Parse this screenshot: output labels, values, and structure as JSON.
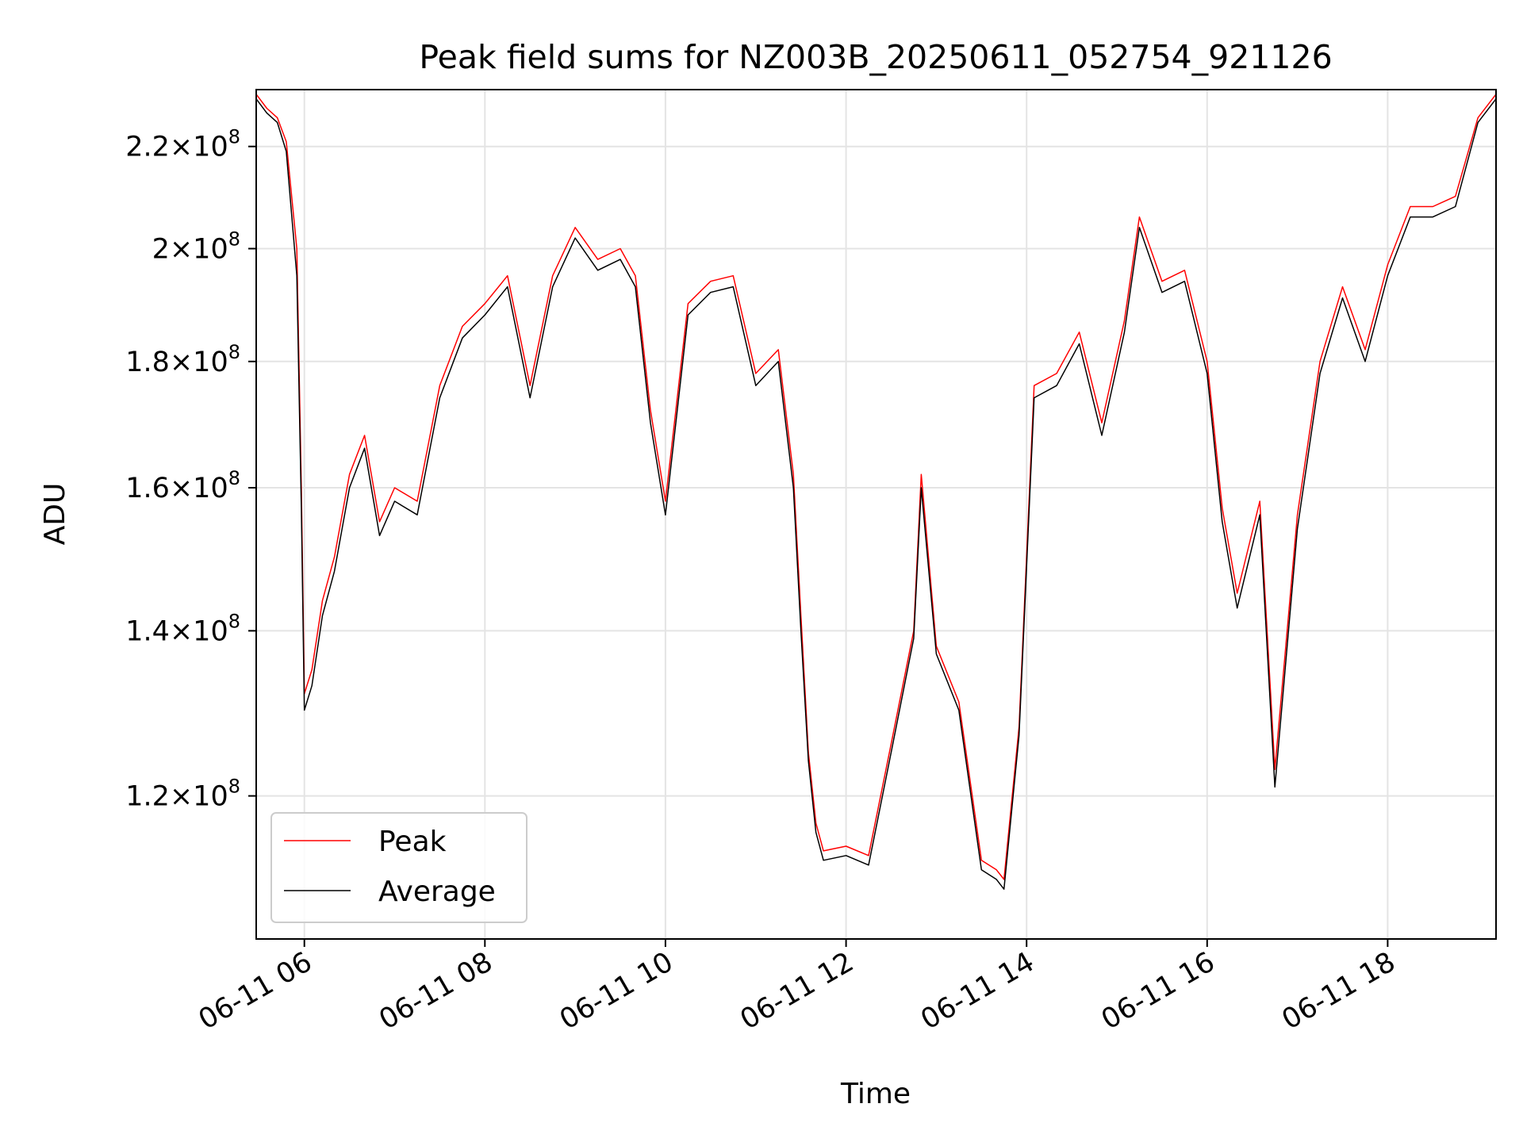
{
  "chart_data": {
    "type": "line",
    "title": "Peak field sums for NZ003B_20250611_052754_921126",
    "xlabel": "Time",
    "ylabel": "ADU",
    "yscale": "log",
    "ylim": [
      105000000,
      232000000
    ],
    "xlim": [
      "2025-06-11 05:28",
      "2025-06-11 19:12"
    ],
    "grid": true,
    "legend_position": "lower-left",
    "x_ticks": [
      {
        "t": "2025-06-11 06:00",
        "label": "06-11 06"
      },
      {
        "t": "2025-06-11 08:00",
        "label": "06-11 08"
      },
      {
        "t": "2025-06-11 10:00",
        "label": "06-11 10"
      },
      {
        "t": "2025-06-11 12:00",
        "label": "06-11 12"
      },
      {
        "t": "2025-06-11 14:00",
        "label": "06-11 14"
      },
      {
        "t": "2025-06-11 16:00",
        "label": "06-11 16"
      },
      {
        "t": "2025-06-11 18:00",
        "label": "06-11 18"
      }
    ],
    "y_ticks": [
      {
        "value": 120000000,
        "mantissa": "1.2",
        "base": "10",
        "exp": "8"
      },
      {
        "value": 140000000,
        "mantissa": "1.4",
        "base": "10",
        "exp": "8"
      },
      {
        "value": 160000000,
        "mantissa": "1.6",
        "base": "10",
        "exp": "8"
      },
      {
        "value": 180000000,
        "mantissa": "1.8",
        "base": "10",
        "exp": "8"
      },
      {
        "value": 200000000,
        "mantissa": "2",
        "base": "10",
        "exp": "8"
      },
      {
        "value": 220000000,
        "mantissa": "2.2",
        "base": "10",
        "exp": "8"
      }
    ],
    "series": [
      {
        "name": "Peak",
        "color": "#ff0000",
        "x": [
          "2025-06-11 05:28",
          "2025-06-11 05:35",
          "2025-06-11 05:42",
          "2025-06-11 05:48",
          "2025-06-11 05:55",
          "2025-06-11 05:58",
          "2025-06-11 06:00",
          "2025-06-11 06:05",
          "2025-06-11 06:12",
          "2025-06-11 06:20",
          "2025-06-11 06:30",
          "2025-06-11 06:40",
          "2025-06-11 06:50",
          "2025-06-11 07:00",
          "2025-06-11 07:15",
          "2025-06-11 07:30",
          "2025-06-11 07:45",
          "2025-06-11 08:00",
          "2025-06-11 08:15",
          "2025-06-11 08:30",
          "2025-06-11 08:45",
          "2025-06-11 09:00",
          "2025-06-11 09:15",
          "2025-06-11 09:30",
          "2025-06-11 09:40",
          "2025-06-11 09:50",
          "2025-06-11 10:00",
          "2025-06-11 10:15",
          "2025-06-11 10:30",
          "2025-06-11 10:45",
          "2025-06-11 11:00",
          "2025-06-11 11:15",
          "2025-06-11 11:25",
          "2025-06-11 11:30",
          "2025-06-11 11:35",
          "2025-06-11 11:40",
          "2025-06-11 11:45",
          "2025-06-11 12:00",
          "2025-06-11 12:15",
          "2025-06-11 12:30",
          "2025-06-11 12:45",
          "2025-06-11 12:50",
          "2025-06-11 13:00",
          "2025-06-11 13:15",
          "2025-06-11 13:30",
          "2025-06-11 13:40",
          "2025-06-11 13:45",
          "2025-06-11 13:55",
          "2025-06-11 14:05",
          "2025-06-11 14:20",
          "2025-06-11 14:35",
          "2025-06-11 14:50",
          "2025-06-11 15:05",
          "2025-06-11 15:15",
          "2025-06-11 15:30",
          "2025-06-11 15:45",
          "2025-06-11 16:00",
          "2025-06-11 16:10",
          "2025-06-11 16:20",
          "2025-06-11 16:35",
          "2025-06-11 16:45",
          "2025-06-11 17:00",
          "2025-06-11 17:15",
          "2025-06-11 17:30",
          "2025-06-11 17:45",
          "2025-06-11 18:00",
          "2025-06-11 18:15",
          "2025-06-11 18:30",
          "2025-06-11 18:45",
          "2025-06-11 19:00",
          "2025-06-11 19:12"
        ],
        "values": [
          231000000,
          228000000,
          226000000,
          221000000,
          200000000,
          160000000,
          132000000,
          135000000,
          144000000,
          150000000,
          162000000,
          168000000,
          155000000,
          160000000,
          158000000,
          176000000,
          186000000,
          190000000,
          195000000,
          176000000,
          195000000,
          204000000,
          198000000,
          200000000,
          195000000,
          172000000,
          158000000,
          190000000,
          194000000,
          195000000,
          178000000,
          182000000,
          162000000,
          142000000,
          125000000,
          117000000,
          114000000,
          114500000,
          113500000,
          126000000,
          140000000,
          162000000,
          138000000,
          131000000,
          113000000,
          112000000,
          111000000,
          128000000,
          176000000,
          178000000,
          185000000,
          170000000,
          187000000,
          206000000,
          194000000,
          196000000,
          180000000,
          157000000,
          145000000,
          158000000,
          123000000,
          156000000,
          180000000,
          193000000,
          182000000,
          197000000,
          208000000,
          208000000,
          210000000,
          226000000,
          231000000
        ]
      },
      {
        "name": "Average",
        "color": "#000000",
        "x": [
          "2025-06-11 05:28",
          "2025-06-11 05:35",
          "2025-06-11 05:42",
          "2025-06-11 05:48",
          "2025-06-11 05:55",
          "2025-06-11 05:58",
          "2025-06-11 06:00",
          "2025-06-11 06:05",
          "2025-06-11 06:12",
          "2025-06-11 06:20",
          "2025-06-11 06:30",
          "2025-06-11 06:40",
          "2025-06-11 06:50",
          "2025-06-11 07:00",
          "2025-06-11 07:15",
          "2025-06-11 07:30",
          "2025-06-11 07:45",
          "2025-06-11 08:00",
          "2025-06-11 08:15",
          "2025-06-11 08:30",
          "2025-06-11 08:45",
          "2025-06-11 09:00",
          "2025-06-11 09:15",
          "2025-06-11 09:30",
          "2025-06-11 09:40",
          "2025-06-11 09:50",
          "2025-06-11 10:00",
          "2025-06-11 10:15",
          "2025-06-11 10:30",
          "2025-06-11 10:45",
          "2025-06-11 11:00",
          "2025-06-11 11:15",
          "2025-06-11 11:25",
          "2025-06-11 11:30",
          "2025-06-11 11:35",
          "2025-06-11 11:40",
          "2025-06-11 11:45",
          "2025-06-11 12:00",
          "2025-06-11 12:15",
          "2025-06-11 12:30",
          "2025-06-11 12:45",
          "2025-06-11 12:50",
          "2025-06-11 13:00",
          "2025-06-11 13:15",
          "2025-06-11 13:30",
          "2025-06-11 13:40",
          "2025-06-11 13:45",
          "2025-06-11 13:55",
          "2025-06-11 14:05",
          "2025-06-11 14:20",
          "2025-06-11 14:35",
          "2025-06-11 14:50",
          "2025-06-11 15:05",
          "2025-06-11 15:15",
          "2025-06-11 15:30",
          "2025-06-11 15:45",
          "2025-06-11 16:00",
          "2025-06-11 16:10",
          "2025-06-11 16:20",
          "2025-06-11 16:35",
          "2025-06-11 16:45",
          "2025-06-11 17:00",
          "2025-06-11 17:15",
          "2025-06-11 17:30",
          "2025-06-11 17:45",
          "2025-06-11 18:00",
          "2025-06-11 18:15",
          "2025-06-11 18:30",
          "2025-06-11 18:45",
          "2025-06-11 19:00",
          "2025-06-11 19:12"
        ],
        "values": [
          230000000,
          227000000,
          225000000,
          219000000,
          195000000,
          157000000,
          130000000,
          133000000,
          142000000,
          148000000,
          160000000,
          166000000,
          153000000,
          158000000,
          156000000,
          174000000,
          184000000,
          188000000,
          193000000,
          174000000,
          193000000,
          202000000,
          196000000,
          198000000,
          193000000,
          170000000,
          156000000,
          188000000,
          192000000,
          193000000,
          176000000,
          180000000,
          160000000,
          140000000,
          124000000,
          116000000,
          113000000,
          113500000,
          112500000,
          125000000,
          139000000,
          160000000,
          137000000,
          130000000,
          112000000,
          111000000,
          110000000,
          127000000,
          174000000,
          176000000,
          183000000,
          168000000,
          185000000,
          204000000,
          192000000,
          194000000,
          178000000,
          155000000,
          143000000,
          156000000,
          121000000,
          154000000,
          178000000,
          191000000,
          180000000,
          195000000,
          206000000,
          206000000,
          208000000,
          225000000,
          230000000
        ]
      }
    ]
  }
}
